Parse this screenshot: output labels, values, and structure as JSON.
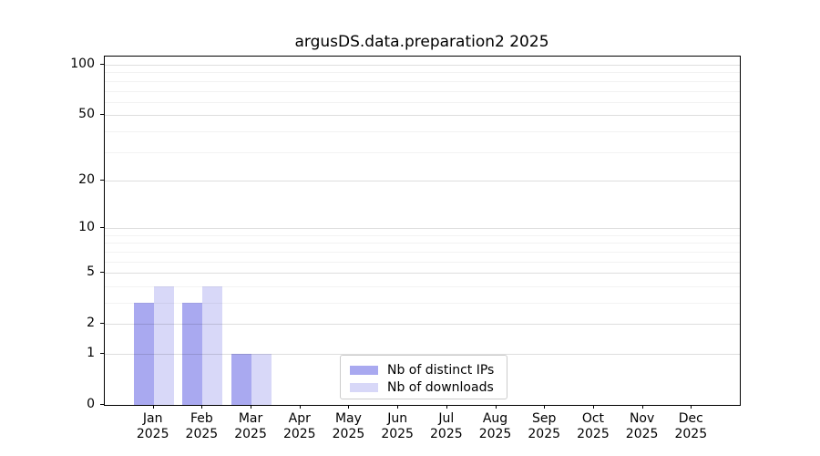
{
  "chart_data": {
    "type": "bar",
    "title": "argusDS.data.preparation2 2025",
    "xlabel": "",
    "ylabel": "",
    "categories": [
      "Jan 2025",
      "Feb 2025",
      "Mar 2025",
      "Apr 2025",
      "May 2025",
      "Jun 2025",
      "Jul 2025",
      "Aug 2025",
      "Sep 2025",
      "Oct 2025",
      "Nov 2025",
      "Dec 2025"
    ],
    "months": [
      "Jan",
      "Feb",
      "Mar",
      "Apr",
      "May",
      "Jun",
      "Jul",
      "Aug",
      "Sep",
      "Oct",
      "Nov",
      "Dec"
    ],
    "year_label": "2025",
    "series": [
      {
        "key": "distinct-ips",
        "name": "Nb of distinct IPs",
        "color": "#a9a9f0",
        "values": [
          3,
          3,
          1,
          0,
          0,
          0,
          0,
          0,
          0,
          0,
          0,
          0
        ]
      },
      {
        "key": "downloads",
        "name": "Nb of downloads",
        "color": "#d8d8f8",
        "values": [
          4,
          4,
          1,
          0,
          0,
          0,
          0,
          0,
          0,
          0,
          0,
          0
        ]
      }
    ],
    "yscale": "log1p-symlog-like",
    "ylim": [
      0,
      112
    ],
    "yticks": [
      0,
      1,
      2,
      5,
      10,
      20,
      50,
      100
    ],
    "yticks_minor": [
      3,
      4,
      6,
      7,
      8,
      9,
      30,
      40,
      60,
      70,
      80,
      90
    ],
    "grid": "both-horizontal",
    "legend_position": "lower center"
  },
  "legend": {
    "items": [
      {
        "label": "Nb of distinct IPs",
        "color": "#a9a9f0"
      },
      {
        "label": "Nb of downloads",
        "color": "#d8d8f8"
      }
    ]
  }
}
